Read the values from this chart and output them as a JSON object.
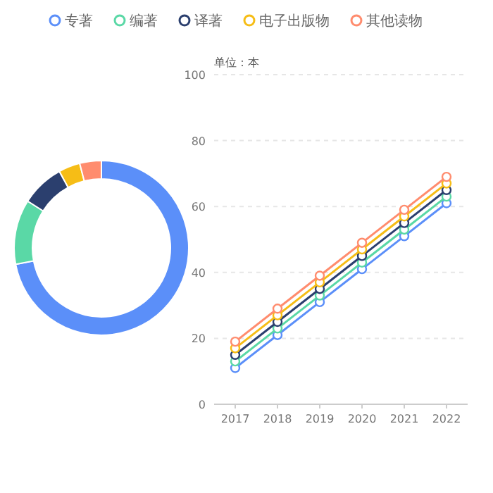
{
  "chart_data": [
    {
      "type": "donut",
      "categories": [
        "专著",
        "编著",
        "译著",
        "电子出版物",
        "其他读物"
      ],
      "values": [
        72,
        12,
        8,
        4,
        4
      ],
      "colors": [
        "#5b8ff9",
        "#5ad8a6",
        "#2b3f6e",
        "#f6bd16",
        "#ff8c6e"
      ],
      "legend": "top"
    },
    {
      "type": "line",
      "ylabel": "单位：本",
      "x": [
        2017,
        2018,
        2019,
        2020,
        2021,
        2022
      ],
      "xlim": [
        2016.5,
        2022.5
      ],
      "xticks": [
        2017,
        2018,
        2019,
        2020,
        2021,
        2022
      ],
      "ylim": [
        0,
        100
      ],
      "yticks": [
        0,
        20,
        40,
        60,
        80,
        100
      ],
      "grid": "y",
      "marker": "circle",
      "line_style": "solid",
      "series": [
        {
          "color": "#5b8ff9",
          "values": [
            11,
            21,
            31,
            41,
            51,
            61
          ]
        },
        {
          "color": "#5ad8a6",
          "values": [
            13,
            23,
            33,
            43,
            53,
            63
          ]
        },
        {
          "color": "#2b3f6e",
          "values": [
            15,
            25,
            35,
            45,
            55,
            65
          ]
        },
        {
          "color": "#f6bd16",
          "values": [
            17,
            27,
            37,
            47,
            57,
            67
          ]
        },
        {
          "color": "#ff8c6e",
          "values": [
            19,
            29,
            39,
            49,
            59,
            69
          ]
        }
      ]
    }
  ]
}
